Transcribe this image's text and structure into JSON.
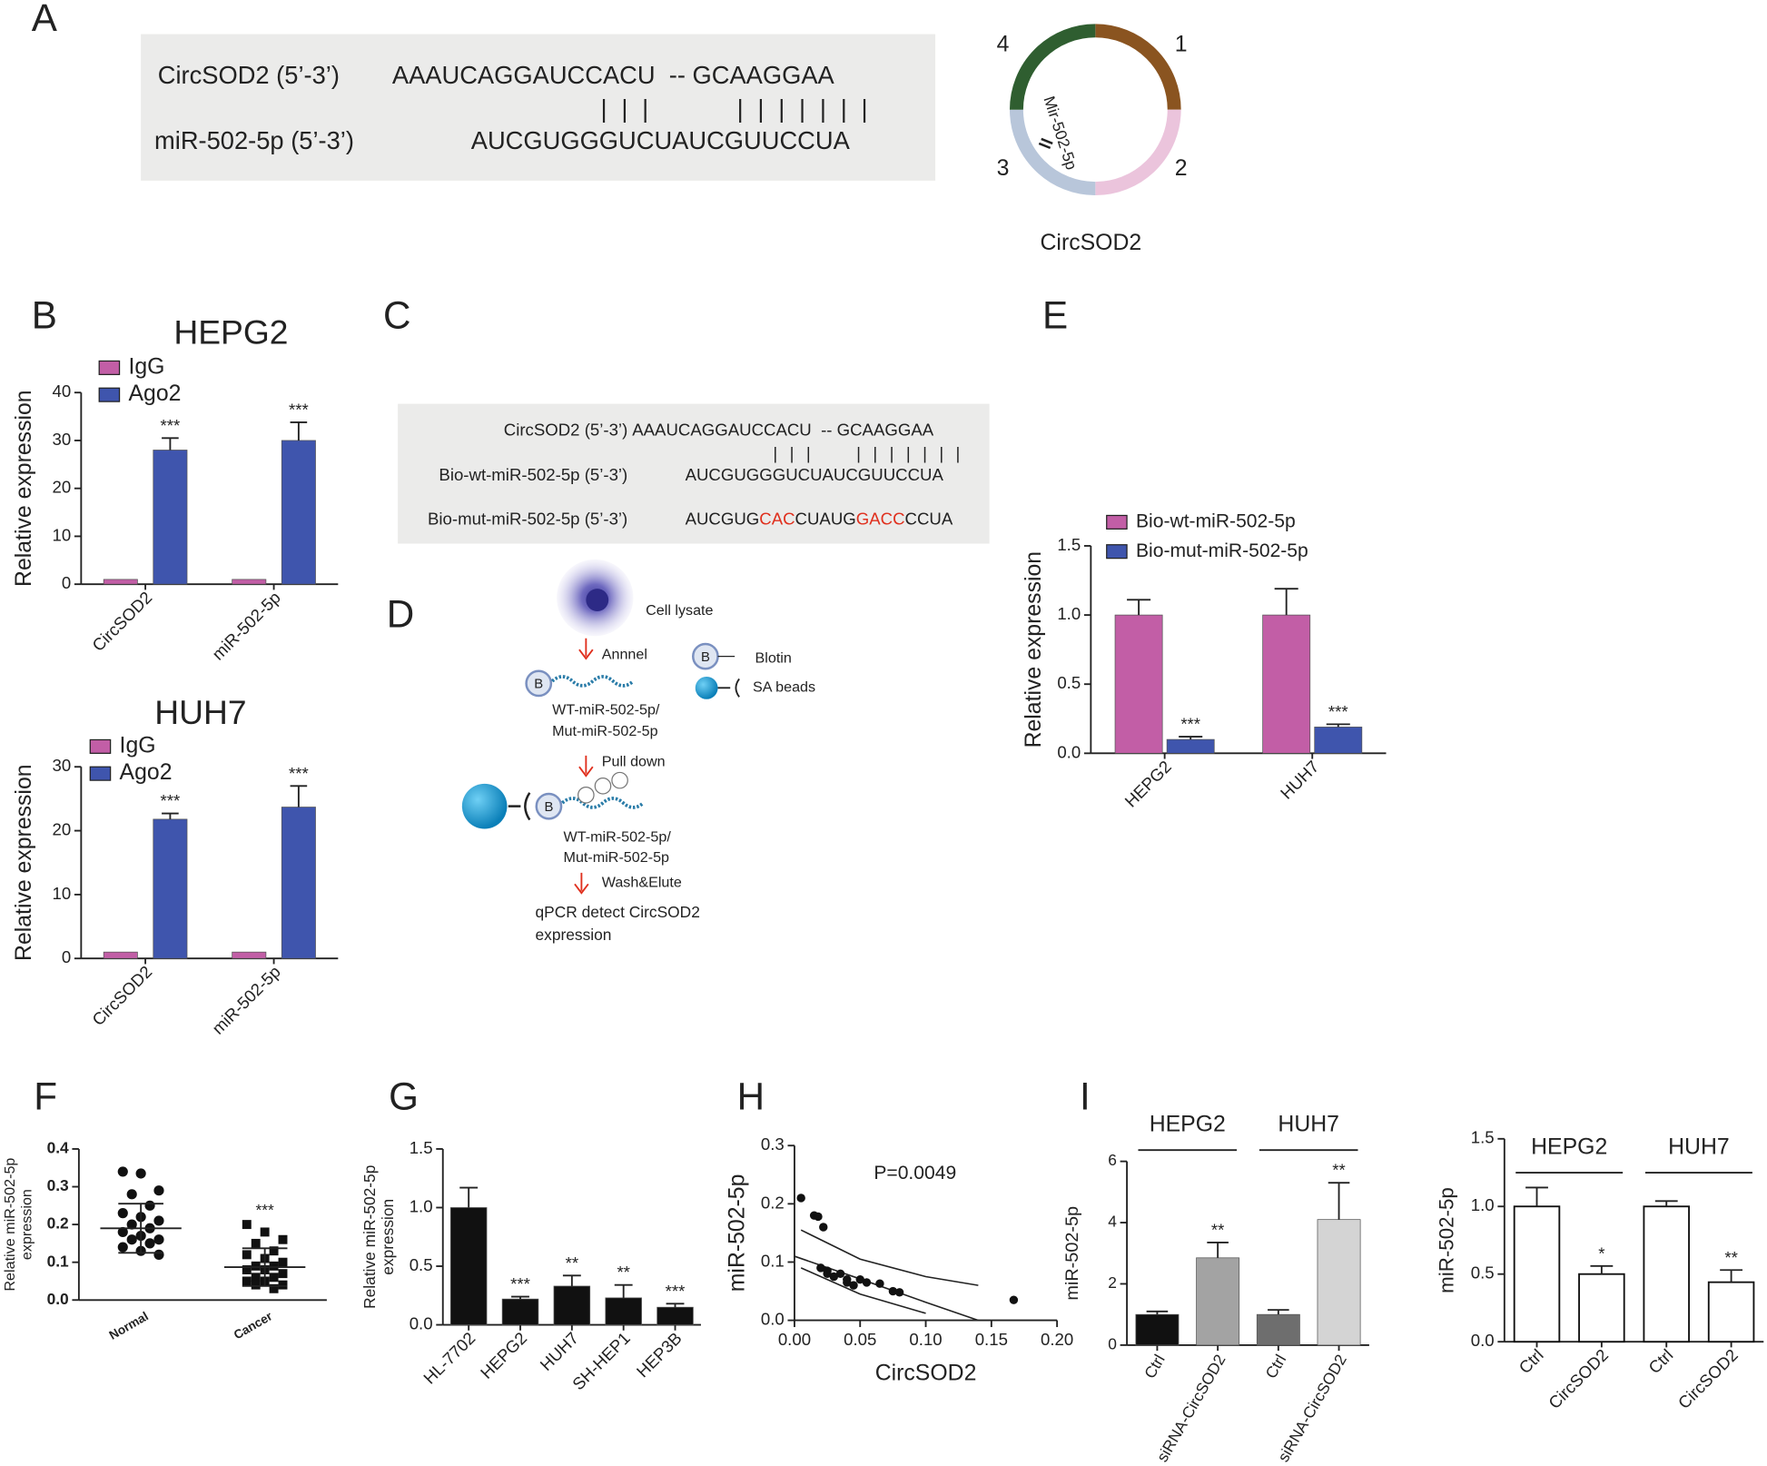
{
  "panel_labels": [
    "A",
    "B",
    "C",
    "D",
    "E",
    "F",
    "G",
    "H",
    "I"
  ],
  "sequence_a": {
    "rows": [
      {
        "label": "CircSOD2 (5’-3’)",
        "sequence": "AAAUCAGGAUCCACU  -- GCAAGGAA"
      },
      {
        "label": "miR-502-5p (5’-3’)",
        "sequence": "AUCGUGGGUCUAUCGUUCCUA"
      }
    ],
    "pairing": "| | |        | | | | | | |"
  },
  "circle": {
    "segments": [
      {
        "label": "1",
        "color": "#8a5420"
      },
      {
        "label": "2",
        "color": "#ebc4dc"
      },
      {
        "label": "3",
        "color": "#b8c6da"
      },
      {
        "label": "4",
        "color": "#2f5e30"
      }
    ],
    "site_label": "Mir-502-5p",
    "title": "CircSOD2"
  },
  "sequence_c": {
    "rows": [
      {
        "label": "CircSOD2 (5’-3’)",
        "parts": [
          {
            "text": "AAAUCAGGAUCCACU  -- GCAAGGAA",
            "color": "#222222"
          }
        ]
      },
      {
        "label": "Bio-wt-miR-502-5p (5’-3’)",
        "parts": [
          {
            "text": "AUCGUGGGUCUAUCGUUCCUA",
            "color": "#222222"
          }
        ]
      },
      {
        "label": "Bio-mut-miR-502-5p (5’-3’)",
        "parts": [
          {
            "text": "AUCGUG",
            "color": "#222222"
          },
          {
            "text": "CAC",
            "color": "#e0301e"
          },
          {
            "text": "CUAUG",
            "color": "#222222"
          },
          {
            "text": "GACC",
            "color": "#e0301e"
          },
          {
            "text": "CCUA",
            "color": "#222222"
          }
        ]
      }
    ],
    "pairing": "| | |     | | | | | | |"
  },
  "diagram_d": {
    "lysate": "Cell lysate",
    "step1": "Annnel",
    "probe1": [
      "WT-miR-502-5p/",
      "Mut-miR-502-5p"
    ],
    "step2": "Pull down",
    "probe2": [
      "WT-miR-502-5p/",
      "Mut-miR-502-5p"
    ],
    "step3": "Wash&Elute",
    "result": [
      "qPCR detect CircSOD2",
      "expression"
    ],
    "biotin": "B",
    "legend": [
      "Blotin",
      "SA beads"
    ]
  },
  "chart_data": [
    {
      "type": "bar",
      "title": "HEPG2",
      "ylabel": "Relative expression",
      "categories": [
        "CircSOD2",
        "miR-502-5p"
      ],
      "series": [
        {
          "name": "IgG",
          "color": "#c25ea6",
          "values": [
            1,
            1
          ]
        },
        {
          "name": "Ago2",
          "color": "#3f55ad",
          "values": [
            28,
            30
          ],
          "errors": [
            2.5,
            3.8
          ],
          "significance": [
            "***",
            "***"
          ]
        }
      ],
      "ylim": [
        0,
        40
      ],
      "yticks": [
        0,
        10,
        20,
        30,
        40
      ],
      "grid": false,
      "legend": "upper left"
    },
    {
      "type": "bar",
      "title": "HUH7",
      "ylabel": "Relative expression",
      "categories": [
        "CircSOD2",
        "miR-502-5p"
      ],
      "series": [
        {
          "name": "IgG",
          "color": "#c25ea6",
          "values": [
            1,
            1
          ]
        },
        {
          "name": "Ago2",
          "color": "#3f55ad",
          "values": [
            21.8,
            23.7
          ],
          "errors": [
            0.9,
            3.3
          ],
          "significance": [
            "***",
            "***"
          ]
        }
      ],
      "ylim": [
        0,
        30
      ],
      "yticks": [
        0,
        10,
        20,
        30
      ],
      "grid": false,
      "legend": "upper left"
    },
    {
      "type": "bar",
      "ylabel": "Relative expression",
      "categories": [
        "HEPG2",
        "HUH7"
      ],
      "series": [
        {
          "name": "Bio-wt-miR-502-5p",
          "color": "#c25ea6",
          "values": [
            1.0,
            1.0
          ],
          "errors": [
            0.11,
            0.19
          ]
        },
        {
          "name": "Bio-mut-miR-502-5p",
          "color": "#3f55ad",
          "values": [
            0.1,
            0.19
          ],
          "errors": [
            0.02,
            0.02
          ],
          "significance": [
            "***",
            "***"
          ]
        }
      ],
      "ylim": [
        0,
        1.5
      ],
      "yticks": [
        {
          "value": 0,
          "label": "0.0"
        },
        0.5,
        {
          "value": 1,
          "label": "1.0"
        },
        1.5
      ],
      "grid": false,
      "legend": "upper left"
    },
    {
      "type": "dot",
      "ylabel": [
        "Relative miR-502-5p",
        "expression"
      ],
      "categories": [
        "Normal",
        "Cancer"
      ],
      "points": [
        [
          0.34,
          0.335,
          0.29,
          0.28,
          0.25,
          0.23,
          0.22,
          0.21,
          0.2,
          0.19,
          0.18,
          0.17,
          0.16,
          0.16,
          0.15,
          0.14,
          0.13,
          0.12
        ],
        [
          0.2,
          0.18,
          0.16,
          0.15,
          0.13,
          0.12,
          0.11,
          0.1,
          0.09,
          0.09,
          0.08,
          0.08,
          0.07,
          0.06,
          0.06,
          0.05,
          0.05,
          0.04,
          0.04,
          0.03
        ]
      ],
      "markers": [
        "circle",
        "square"
      ],
      "color": "#111111",
      "mean": [
        0.19,
        0.087
      ],
      "sd": [
        0.065,
        0.05
      ],
      "significance": [
        null,
        "***"
      ],
      "ylim": [
        0,
        0.4
      ],
      "yticks": [
        {
          "value": 0,
          "label": "0.0"
        },
        0.1,
        0.2,
        0.3,
        0.4
      ],
      "grid": false
    },
    {
      "type": "bar",
      "ylabel": [
        "Relative miR-502-5p",
        "expression"
      ],
      "categories": [
        "HL-7702",
        "HEPG2",
        "HUH7",
        "SH-HEP1",
        "HEP3B"
      ],
      "series": [
        {
          "color": "#111111",
          "values": [
            1.0,
            0.22,
            0.33,
            0.23,
            0.15
          ],
          "errors": [
            0.17,
            0.02,
            0.09,
            0.11,
            0.03
          ],
          "significance": [
            null,
            "***",
            "**",
            "**",
            "***"
          ]
        }
      ],
      "ylim": [
        0,
        1.5
      ],
      "yticks": [
        {
          "value": 0,
          "label": "0.0"
        },
        0.5,
        {
          "value": 1,
          "label": "1.0"
        },
        1.5
      ],
      "grid": false
    },
    {
      "type": "scatter",
      "xlabel": "CircSOD2",
      "ylabel": "miR-502-5p",
      "annotation": "P=0.0049",
      "color": "#111111",
      "x": [
        0.005,
        0.015,
        0.018,
        0.022,
        0.02,
        0.025,
        0.03,
        0.035,
        0.04,
        0.045,
        0.05,
        0.055,
        0.065,
        0.075,
        0.08,
        0.04,
        0.025,
        0.167
      ],
      "y": [
        0.21,
        0.18,
        0.178,
        0.16,
        0.09,
        0.085,
        0.075,
        0.08,
        0.065,
        0.06,
        0.07,
        0.065,
        0.063,
        0.05,
        0.048,
        0.07,
        0.08,
        0.035
      ],
      "fit": {
        "x": [
          0,
          0.05,
          0.1,
          0.14
        ],
        "y": [
          0.11,
          0.071,
          0.031,
          0
        ]
      },
      "ci": {
        "x": [
          0.005,
          0.05,
          0.1,
          0.14
        ],
        "upper": [
          0.155,
          0.105,
          0.075,
          0.06
        ],
        "lower": [
          0.09,
          0.045,
          0.012,
          null
        ]
      },
      "xlim": [
        0,
        0.2
      ],
      "xticks": [
        {
          "value": 0,
          "label": "0.00"
        },
        0.05,
        {
          "value": 0.1,
          "label": "0.10"
        },
        0.15,
        {
          "value": 0.2,
          "label": "0.20"
        }
      ],
      "ylim": [
        0,
        0.3
      ],
      "yticks": [
        {
          "value": 0,
          "label": "0.0"
        },
        0.1,
        0.2,
        0.3
      ],
      "grid": false
    },
    {
      "type": "bar",
      "ylabel": "miR-502-5p",
      "groups": [
        "HEPG2",
        "HUH7"
      ],
      "categories": [
        "Ctrl",
        "siRNA-CircSOD2",
        "Ctrl",
        "siRNA-CircSOD2"
      ],
      "series": [
        {
          "colors": [
            "#111111",
            "#a3a3a3",
            "#6e6e6e",
            "#d4d4d4"
          ],
          "values": [
            1.0,
            2.85,
            1.0,
            4.1
          ],
          "errors": [
            0.1,
            0.5,
            0.15,
            1.2
          ],
          "significance": [
            null,
            "**",
            null,
            "**"
          ]
        }
      ],
      "ylim": [
        0,
        6
      ],
      "yticks": [
        0,
        2,
        4,
        6
      ],
      "grid": false
    },
    {
      "type": "bar",
      "ylabel": "miR-502-5p",
      "groups": [
        "HEPG2",
        "HUH7"
      ],
      "edgecolor": "#111111",
      "categories": [
        "Ctrl",
        "CircSOD2",
        "Ctrl",
        "CircSOD2"
      ],
      "series": [
        {
          "color": "#ffffff",
          "values": [
            1.0,
            0.5,
            1.0,
            0.44
          ],
          "errors": [
            0.14,
            0.06,
            0.04,
            0.09
          ],
          "significance": [
            null,
            "*",
            null,
            "**"
          ]
        }
      ],
      "ylim": [
        0,
        1.5
      ],
      "yticks": [
        {
          "value": 0,
          "label": "0.0"
        },
        0.5,
        {
          "value": 1,
          "label": "1.0"
        },
        1.5
      ],
      "grid": false
    }
  ]
}
